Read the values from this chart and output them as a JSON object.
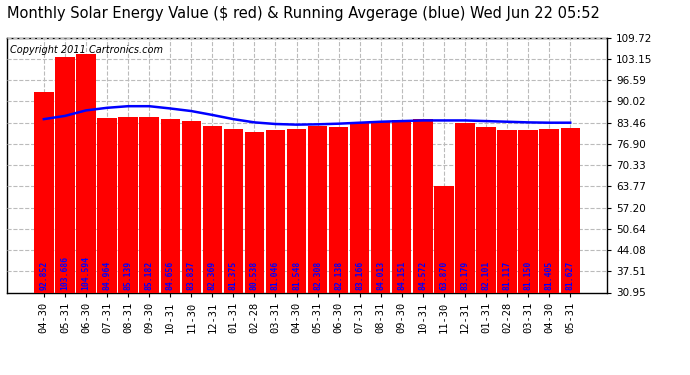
{
  "title": "Monthly Solar Energy Value ($ red) & Running Avgerage (blue) Wed Jun 22 05:52",
  "copyright": "Copyright 2011 Cartronics.com",
  "categories": [
    "04-30",
    "05-31",
    "06-30",
    "07-31",
    "08-31",
    "09-30",
    "10-31",
    "11-30",
    "12-31",
    "01-31",
    "02-28",
    "03-31",
    "04-30",
    "05-31",
    "06-30",
    "07-31",
    "08-31",
    "09-30",
    "10-31",
    "11-30",
    "12-31",
    "01-31",
    "02-28",
    "03-31",
    "04-30",
    "05-31"
  ],
  "bar_values": [
    92.852,
    103.686,
    104.594,
    84.964,
    85.139,
    85.182,
    84.656,
    83.837,
    82.369,
    81.375,
    80.538,
    81.046,
    81.548,
    82.308,
    82.138,
    83.166,
    84.013,
    84.151,
    84.572,
    63.87,
    83.179,
    82.101,
    81.117,
    81.15,
    81.405,
    81.627
  ],
  "running_avg": [
    84.5,
    85.5,
    87.2,
    88.0,
    88.5,
    88.5,
    87.8,
    87.0,
    85.8,
    84.5,
    83.5,
    83.0,
    82.8,
    82.9,
    83.1,
    83.4,
    83.7,
    83.9,
    84.1,
    84.1,
    84.1,
    83.9,
    83.7,
    83.5,
    83.4,
    83.4
  ],
  "bar_color": "#ff0000",
  "line_color": "#0000ff",
  "background_color": "#ffffff",
  "grid_color": "#bbbbbb",
  "label_color": "#0000ff",
  "yticks": [
    30.95,
    37.51,
    44.08,
    50.64,
    57.2,
    63.77,
    70.33,
    76.9,
    83.46,
    90.02,
    96.59,
    103.15,
    109.72
  ],
  "ymin": 30.95,
  "ymax": 109.72,
  "title_fontsize": 10.5,
  "copyright_fontsize": 7,
  "bar_label_fontsize": 5.8,
  "tick_fontsize": 7.5,
  "figwidth": 6.9,
  "figheight": 3.75,
  "dpi": 100
}
